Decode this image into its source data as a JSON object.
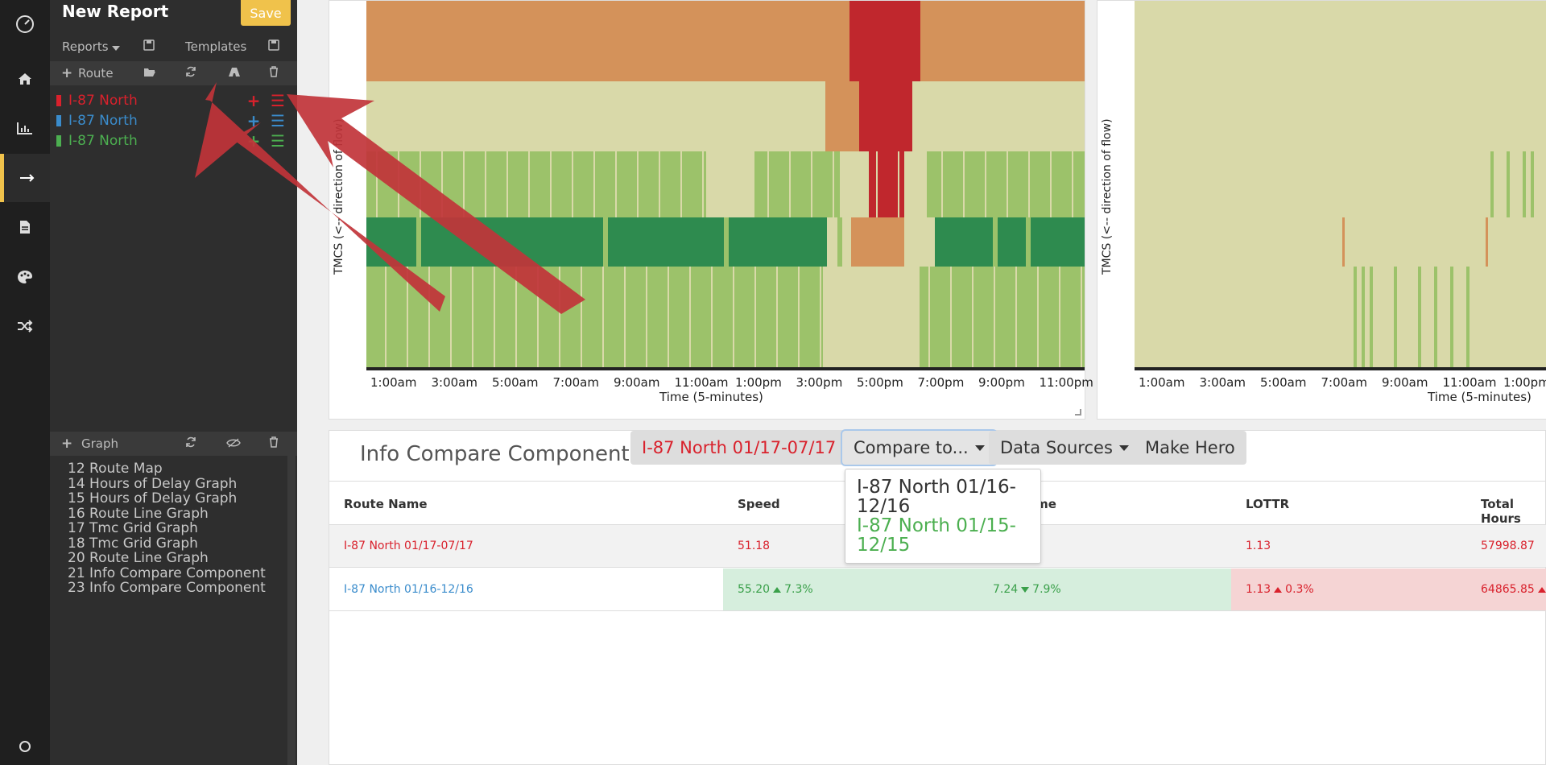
{
  "app": {
    "title": "New Report",
    "save_label": "Save"
  },
  "sidebar": {
    "reports_label": "Reports",
    "templates_label": "Templates",
    "route_label": "Route",
    "routes": [
      {
        "label": "I-87 North",
        "color": "#d9212c"
      },
      {
        "label": "I-87 North",
        "color": "#3a8ccc"
      },
      {
        "label": "I-87 North",
        "color": "#4caf50"
      }
    ],
    "graph_label": "Graph",
    "graphs": [
      "12 Route Map",
      "14 Hours of Delay Graph",
      "15 Hours of Delay Graph",
      "16 Route Line Graph",
      "17 Tmc Grid Graph",
      "18 Tmc Grid Graph",
      "20 Route Line Graph",
      "21 Info Compare Component",
      "23 Info Compare Component"
    ]
  },
  "charts": {
    "left": {
      "ylabel": "TMCS (<-- direction of flow)",
      "xlabel": "Time (5-minutes)",
      "ticks": [
        "1:00am",
        "3:00am",
        "5:00am",
        "7:00am",
        "9:00am",
        "11:00am",
        "1:00pm",
        "3:00pm",
        "5:00pm",
        "7:00pm",
        "9:00pm",
        "11:00pm"
      ]
    },
    "right": {
      "ylabel": "TMCS (<-- direction of flow)",
      "xlabel": "Time (5-minutes)",
      "ticks": [
        "1:00am",
        "3:00am",
        "5:00am",
        "7:00am",
        "9:00am",
        "11:00am",
        "1:00pm"
      ]
    },
    "colors": {
      "congested_red": "#c0272d",
      "slow_orange": "#d4925a",
      "moderate_beige": "#d9d9a9",
      "fair_green": "#9cc26a",
      "free_dark_green": "#2e8b4f"
    }
  },
  "info_compare": {
    "title": "Info Compare Component",
    "selected_route": "I-87 North 01/17-07/17",
    "compare_label": "Compare to...",
    "data_sources_label": "Data Sources",
    "make_hero_label": "Make Hero",
    "compare_options": [
      {
        "label": "I-87 North 01/16-12/16",
        "color": "#333333"
      },
      {
        "label": "I-87 North 01/15-12/15",
        "color": "#4caf50"
      }
    ],
    "columns": [
      "Route Name",
      "Speed",
      "ime",
      "LOTTR",
      "Total Hours"
    ],
    "rows": [
      {
        "name": "I-87 North 01/17-07/17",
        "speed": "51.18",
        "time": "",
        "lottr": "1.13",
        "hours": "57998.87"
      },
      {
        "name": "I-87 North 01/16-12/16",
        "speed": "55.20",
        "speed_change": "7.3%",
        "time": "7.24",
        "time_change": "7.9%",
        "lottr": "1.13",
        "lottr_change": "0.3%",
        "hours": "64865.85"
      }
    ]
  }
}
